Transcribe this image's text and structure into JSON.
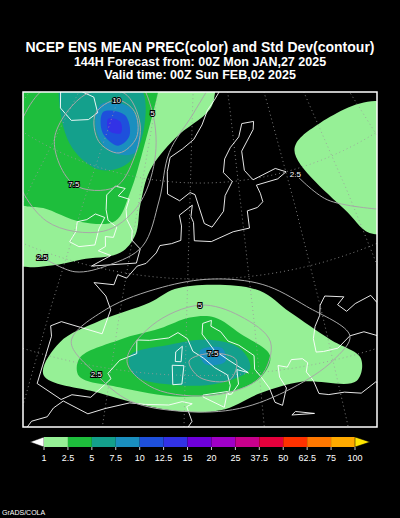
{
  "chart_data": {
    "type": "map",
    "title": "NCEP ENS MEAN PREC(color) and Std Dev(contour)",
    "subtitle": [
      "144H Forecast from: 00Z Mon JAN,27 2025",
      "Valid time: 00Z Sun FEB,02 2025"
    ],
    "precipitation": [
      {
        "level": 1,
        "coordinates": [
          [
            -60,
            75
          ],
          [
            20,
            75
          ],
          [
            16.5,
            69.5
          ],
          [
            14.7,
            67.6
          ],
          [
            6,
            64.5
          ],
          [
            1.3,
            60.9
          ],
          [
            0.5,
            57.2
          ],
          [
            0.5,
            54.1
          ],
          [
            -1.5,
            52
          ],
          [
            -7.5,
            50.4
          ],
          [
            -11.8,
            48.9
          ],
          [
            -15.5,
            47.9
          ],
          [
            -30,
            46
          ],
          [
            -60,
            60
          ]
        ]
      },
      {
        "level": 1,
        "coordinates": [
          [
            33,
            61.9
          ],
          [
            40,
            63.5
          ],
          [
            55,
            62
          ],
          [
            55,
            50
          ],
          [
            41.3,
            51
          ],
          [
            38.6,
            54.1
          ]
        ]
      },
      {
        "level": 1,
        "coordinates": [
          [
            -8.5,
            38
          ],
          [
            -7.5,
            41.6
          ],
          [
            -2.6,
            44.7
          ],
          [
            4.3,
            47.3
          ],
          [
            8,
            48.9
          ],
          [
            14.4,
            49.4
          ],
          [
            21.4,
            48.4
          ],
          [
            25.4,
            45.75
          ],
          [
            30.3,
            42.1
          ],
          [
            33.6,
            39.5
          ],
          [
            32.3,
            37.4
          ],
          [
            25.3,
            38.5
          ],
          [
            19.9,
            37.9
          ],
          [
            14.6,
            36.4
          ],
          [
            8.1,
            36.4
          ],
          [
            -1.1,
            37.4
          ]
        ]
      },
      {
        "level": 2.5,
        "coordinates": [
          [
            -60,
            75
          ],
          [
            0,
            75
          ],
          [
            0.1,
            69.5
          ],
          [
            -0.85,
            63.5
          ],
          [
            -1.9,
            58.25
          ],
          [
            -3.5,
            55.1
          ],
          [
            -9.3,
            54.1
          ],
          [
            -16.4,
            54.1
          ],
          [
            -19,
            53.6
          ],
          [
            -30,
            52
          ],
          [
            -60,
            60
          ]
        ]
      },
      {
        "level": 2.5,
        "coordinates": [
          [
            -4.4,
            40.5
          ],
          [
            0.6,
            43.1
          ],
          [
            6.1,
            44.7
          ],
          [
            10.5,
            46
          ],
          [
            14.2,
            46
          ],
          [
            17.8,
            44.2
          ],
          [
            21.7,
            41.6
          ],
          [
            20.1,
            39.5
          ],
          [
            16,
            38.25
          ],
          [
            9.4,
            37.8
          ],
          [
            1.4,
            38.25
          ],
          [
            -4,
            38.7
          ]
        ]
      },
      {
        "level": 5,
        "coordinates": [
          [
            -28,
            68.7
          ],
          [
            -5.6,
            69.2
          ],
          [
            -1.8,
            65.5
          ],
          [
            -3.3,
            61.4
          ],
          [
            -8.7,
            59.8
          ],
          [
            -15.8,
            60.9
          ],
          [
            -23,
            64.5
          ]
        ]
      },
      {
        "level": 5,
        "coordinates": [
          [
            2.3,
            41.6
          ],
          [
            7.7,
            43.1
          ],
          [
            13.4,
            43.7
          ],
          [
            17.7,
            42.6
          ],
          [
            18.8,
            40.5
          ],
          [
            14.7,
            39.2
          ],
          [
            8,
            39
          ],
          [
            3.2,
            39.7
          ]
        ]
      },
      {
        "level": 7.5,
        "coordinates": [
          [
            -13.7,
            66.1
          ],
          [
            -6.5,
            66.8
          ],
          [
            -2.8,
            65
          ],
          [
            -2.6,
            62.4
          ],
          [
            -8,
            61.9
          ],
          [
            -12.7,
            63.7
          ]
        ]
      },
      {
        "level": 7.5,
        "coordinates": [
          [
            12,
            42.6
          ],
          [
            15.1,
            42.8
          ],
          [
            15.5,
            41.4
          ],
          [
            12.7,
            41.2
          ]
        ]
      },
      {
        "level": 10,
        "coordinates": [
          [
            -12.4,
            65.5
          ],
          [
            -7.1,
            65.9
          ],
          [
            -4.7,
            64
          ],
          [
            -6.6,
            62.7
          ],
          [
            -10.9,
            63.5
          ]
        ]
      },
      {
        "level": 12.5,
        "coordinates": [
          [
            -10.7,
            65
          ],
          [
            -7.7,
            65.1
          ],
          [
            -6.8,
            64
          ],
          [
            -9.7,
            63.9
          ]
        ]
      }
    ],
    "std_dev_contours": [
      {
        "value": 10,
        "coordinates": [
          [
            -10.3,
            67.1
          ],
          [
            -5,
            66.5
          ],
          [
            -3,
            64
          ],
          [
            -6,
            62
          ],
          [
            -11,
            62.5
          ],
          [
            -14,
            65
          ],
          [
            -10.3,
            67.1
          ]
        ]
      },
      {
        "value": 7.5,
        "coordinates": [
          [
            -12.8,
            57.5
          ],
          [
            -5,
            58.5
          ],
          [
            -2.5,
            62
          ],
          [
            -3,
            65.5
          ],
          [
            -9,
            68
          ],
          [
            -18,
            66.5
          ],
          [
            -20,
            61
          ],
          [
            -12.8,
            57.5
          ]
        ]
      },
      {
        "value": 5,
        "coordinates": [
          [
            -0.4,
            66.8
          ],
          [
            2,
            62
          ],
          [
            0,
            57
          ],
          [
            -5.1,
            53.8
          ],
          [
            -15,
            53
          ],
          [
            -25,
            57
          ],
          [
            -28,
            64
          ],
          [
            -20,
            69
          ],
          [
            -8,
            70
          ],
          [
            -0.4,
            66.8
          ]
        ]
      },
      {
        "value": 2.5,
        "coordinates": [
          [
            -13.6,
            49.4
          ],
          [
            -8,
            49
          ],
          [
            -3,
            50.5
          ],
          [
            2,
            53
          ],
          [
            4,
            58
          ],
          [
            5,
            63
          ],
          [
            10,
            67
          ],
          [
            15,
            70
          ]
        ]
      },
      {
        "value": 2.5,
        "coordinates": [
          [
            31.7,
            59.5
          ],
          [
            36,
            56
          ],
          [
            44,
            53
          ]
        ]
      },
      {
        "value": 5,
        "coordinates": [
          [
            12,
            47.3
          ],
          [
            18,
            46
          ],
          [
            22,
            43
          ],
          [
            20,
            39.5
          ],
          [
            14,
            38
          ],
          [
            6,
            38.5
          ],
          [
            2,
            41
          ],
          [
            5,
            45
          ],
          [
            12,
            47.3
          ]
        ]
      },
      {
        "value": 7.5,
        "coordinates": [
          [
            13.8,
            42.3
          ],
          [
            17,
            41.5
          ],
          [
            16,
            39.5
          ],
          [
            12,
            39.8
          ],
          [
            10.5,
            41.5
          ],
          [
            13.8,
            42.3
          ]
        ]
      },
      {
        "value": 2.5,
        "coordinates": [
          [
            -1.8,
            39.2
          ],
          [
            3,
            37
          ],
          [
            10,
            36.3
          ],
          [
            17,
            36.5
          ],
          [
            24,
            38
          ],
          [
            30,
            40
          ],
          [
            33,
            42
          ],
          [
            28,
            46
          ],
          [
            22,
            49
          ],
          [
            14,
            50
          ],
          [
            6,
            49
          ],
          [
            -2,
            46
          ],
          [
            -6,
            42
          ],
          [
            -1.8,
            39.2
          ]
        ]
      }
    ],
    "colorbar": {
      "ticks": [
        1,
        2.5,
        5,
        7.5,
        10,
        12.5,
        15,
        20,
        25,
        37.5,
        50,
        62.5,
        75,
        100
      ],
      "colors": [
        "#ffffff",
        "#96f096",
        "#1ebe3c",
        "#14a08c",
        "#1a8fbf",
        "#1e50dc",
        "#3232e6",
        "#6e00dc",
        "#a000c8",
        "#c8008c",
        "#e6003c",
        "#ff3200",
        "#ff7800",
        "#ffaa00",
        "#ffe600"
      ]
    },
    "credit": "GrADS/COLA"
  }
}
